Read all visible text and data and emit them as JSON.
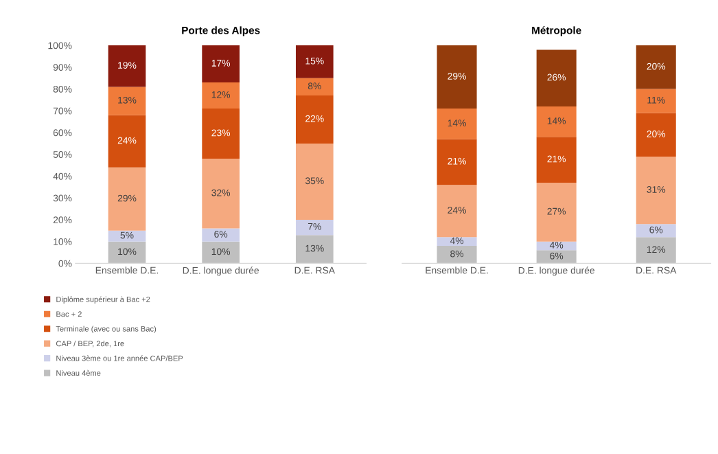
{
  "chart_data": [
    {
      "type": "bar",
      "title": "Porte des Alpes",
      "stacked": true,
      "categories": [
        "Ensemble D.E.",
        "D.E. longue durée",
        "D.E. RSA"
      ],
      "ylim": [
        0,
        100
      ],
      "yticks": [
        {
          "value": 0,
          "label": "0%"
        },
        {
          "value": 10,
          "label": "10%"
        },
        {
          "value": 20,
          "label": "20%"
        },
        {
          "value": 30,
          "label": "30%"
        },
        {
          "value": 40,
          "label": "40%"
        },
        {
          "value": 50,
          "label": "50%"
        },
        {
          "value": 60,
          "label": "60%"
        },
        {
          "value": 70,
          "label": "70%"
        },
        {
          "value": 80,
          "label": "80%"
        },
        {
          "value": 90,
          "label": "90%"
        },
        {
          "value": 100,
          "label": "100%"
        }
      ],
      "grid": false,
      "legend": "bottom left",
      "series": [
        {
          "name": "Niveau 4ème",
          "color": "#bfbfbf",
          "values": [
            10,
            10,
            13
          ],
          "value_labels": [
            "10%",
            "10%",
            "13%"
          ]
        },
        {
          "name": "Niveau 3ème ou 1re année CAP/BEP",
          "color": "#cdd0ea",
          "values": [
            5,
            6,
            7
          ],
          "value_labels": [
            "5%",
            "6%",
            "7%"
          ]
        },
        {
          "name": "CAP / BEP, 2de, 1re",
          "color": "#f5a97f",
          "values": [
            29,
            32,
            35
          ],
          "value_labels": [
            "29%",
            "32%",
            "35%"
          ]
        },
        {
          "name": "Terminale (avec ou sans Bac)",
          "color": "#d4500f",
          "values": [
            24,
            23,
            22
          ],
          "value_labels": [
            "24%",
            "23%",
            "22%"
          ]
        },
        {
          "name": "Bac + 2",
          "color": "#f07b3a",
          "values": [
            13,
            12,
            8
          ],
          "value_labels": [
            "13%",
            "12%",
            "8%"
          ]
        },
        {
          "name": "Diplôme supérieur à Bac +2",
          "color": "#8b1a0e",
          "values": [
            19,
            17,
            15
          ],
          "value_labels": [
            "19%",
            "17%",
            "15%"
          ]
        }
      ]
    },
    {
      "type": "bar",
      "title": "Métropole",
      "stacked": true,
      "categories": [
        "Ensemble D.E.",
        "D.E. longue durée",
        "D.E. RSA"
      ],
      "ylim": [
        0,
        100
      ],
      "tick_labels": "x",
      "grid": false,
      "legend": false,
      "series": [
        {
          "color": "#bfbfbf",
          "values": [
            8,
            6,
            12
          ],
          "value_labels": [
            "8%",
            "6%",
            "12%"
          ]
        },
        {
          "color": "#cdd0ea",
          "values": [
            4,
            4,
            6
          ],
          "value_labels": [
            "4%",
            "4%",
            "6%"
          ]
        },
        {
          "color": "#f5a97f",
          "values": [
            24,
            27,
            31
          ],
          "value_labels": [
            "24%",
            "27%",
            "31%"
          ]
        },
        {
          "color": "#d4500f",
          "values": [
            21,
            21,
            20
          ],
          "value_labels": [
            "21%",
            "21%",
            "20%"
          ]
        },
        {
          "color": "#f07b3a",
          "values": [
            14,
            14,
            11
          ],
          "value_labels": [
            "14%",
            "14%",
            "11%"
          ]
        },
        {
          "color": "#943c0c",
          "values": [
            29,
            26,
            20
          ],
          "value_labels": [
            "29%",
            "26%",
            "20%"
          ]
        }
      ]
    }
  ]
}
